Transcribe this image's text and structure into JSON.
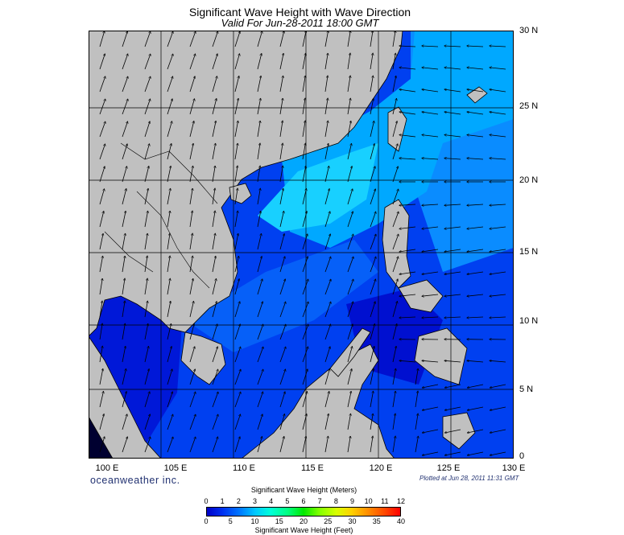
{
  "title": "Significant Wave Height with Wave Direction",
  "subtitle": "Valid For Jun-28-2011 18:00 GMT",
  "brand": "oceanweather inc.",
  "plotted": "Plotted at Jun 28, 2011 11:31 GMT",
  "map": {
    "lat_labels": [
      "30 N",
      "25 N",
      "20 N",
      "15 N",
      "10 N",
      "5 N",
      "0"
    ],
    "lon_labels": [
      "100 E",
      "105 E",
      "110 E",
      "115 E",
      "120 E",
      "125 E",
      "130 E"
    ],
    "extent": {
      "lon_min": 99,
      "lon_max": 130,
      "lat_min": 0,
      "lat_max": 30
    },
    "colors": {
      "land": "#c0c0c0",
      "sea_low": "#0000c8",
      "sea_mid": "#0060ff",
      "sea_high": "#00c8ff"
    },
    "wave_direction": "predominantly from the south-southwest in the South China Sea, from the east in the open Pacific"
  },
  "legend": {
    "meters_title": "Significant Wave Height (Meters)",
    "feet_title": "Significant Wave Height (Feet)",
    "meters_ticks": [
      "0",
      "1",
      "2",
      "3",
      "4",
      "5",
      "6",
      "7",
      "8",
      "9",
      "10",
      "11",
      "12"
    ],
    "feet_ticks": [
      "0",
      "5",
      "10",
      "15",
      "20",
      "25",
      "30",
      "35",
      "40"
    ]
  }
}
